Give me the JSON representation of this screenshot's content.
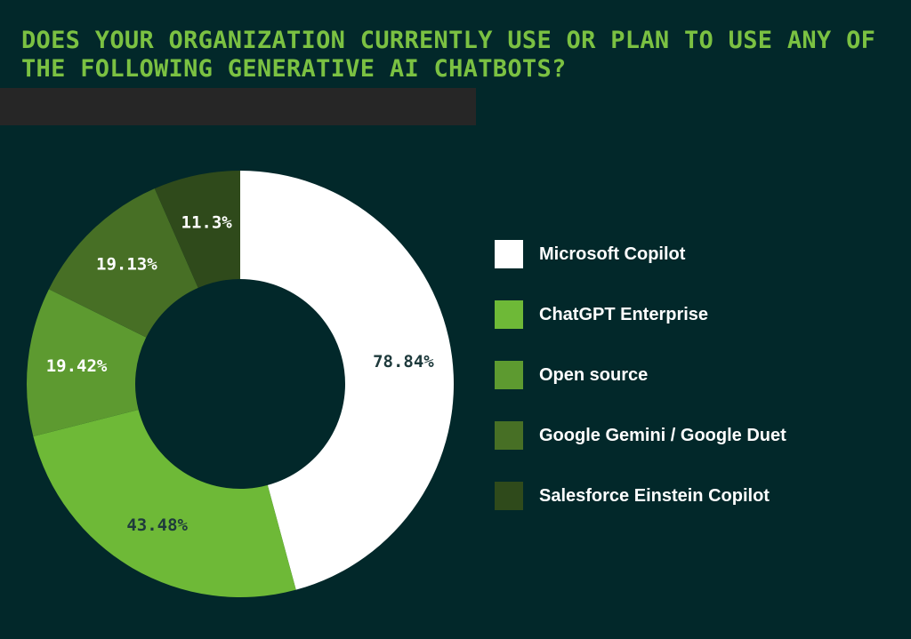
{
  "chart_data": {
    "type": "pie",
    "title": "Does your organization currently use or plan to use any of the following generative AI chatbots?",
    "categories": [
      "Microsoft Copilot",
      "ChatGPT Enterprise",
      "Open source",
      "Google Gemini / Google Duet",
      "Salesforce Einstein Copilot"
    ],
    "values": [
      78.84,
      43.48,
      19.42,
      19.13,
      11.3
    ],
    "labels": [
      "78.84%",
      "43.48%",
      "19.42%",
      "19.13%",
      "11.3%"
    ],
    "colors": [
      "#ffffff",
      "#6eb937",
      "#5d9a30",
      "#476f25",
      "#2f4a1b"
    ],
    "label_colors": [
      "#1e3a3c",
      "#1e3a3c",
      "#ffffff",
      "#ffffff",
      "#ffffff"
    ],
    "legend_position": "right",
    "donut": true
  }
}
